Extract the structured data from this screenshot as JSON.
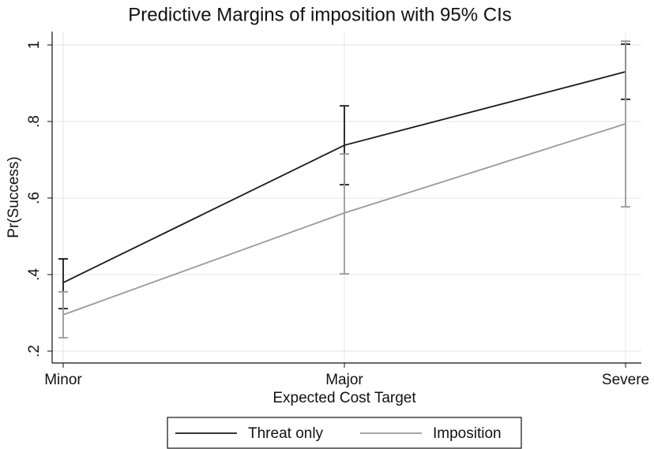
{
  "chart_data": {
    "type": "line",
    "title": "Predictive Margins of imposition with 95% CIs",
    "x_label": "Expected Cost Target",
    "y_label": "Pr(Success)",
    "categories": [
      "Minor",
      "Major",
      "Severe"
    ],
    "series": [
      {
        "name": "Threat only",
        "color": "#1a1a1a",
        "values": [
          0.379,
          0.738,
          0.93
        ],
        "ci_low": [
          0.311,
          0.635,
          0.858
        ],
        "ci_high": [
          0.441,
          0.841,
          1.002
        ]
      },
      {
        "name": "Imposition",
        "color": "#999999",
        "values": [
          0.295,
          0.561,
          0.794
        ],
        "ci_low": [
          0.235,
          0.402,
          0.577
        ],
        "ci_high": [
          0.355,
          0.715,
          1.01
        ]
      }
    ],
    "ylim": [
      0.169,
      1.035
    ],
    "yticks": [
      {
        "value": 0.2,
        "label": ".2"
      },
      {
        "value": 0.4,
        "label": ".4"
      },
      {
        "value": 0.6,
        "label": ".6"
      },
      {
        "value": 0.8,
        "label": ".8"
      },
      1
    ],
    "grid": true,
    "legend": "bottom"
  }
}
